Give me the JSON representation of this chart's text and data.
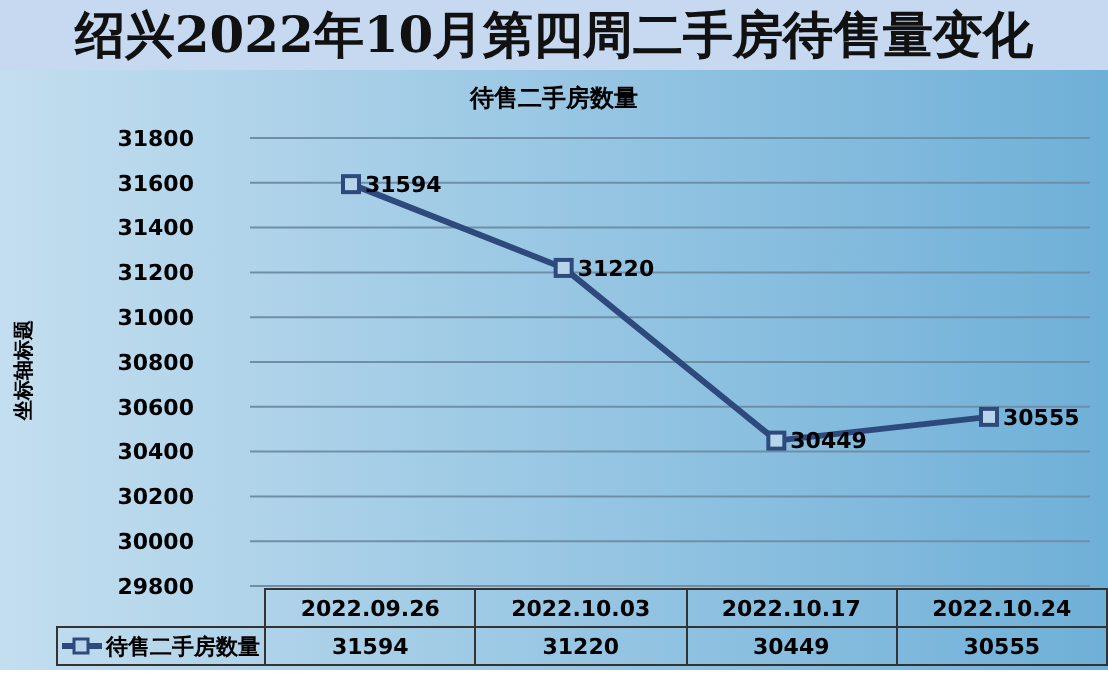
{
  "chart_data": {
    "type": "line",
    "title": "绍兴2022年10月第四周二手房待售量变化",
    "subtitle": "待售二手房数量",
    "ylabel": "坐标轴标题",
    "categories": [
      "2022.09.26",
      "2022.10.03",
      "2022.10.17",
      "2022.10.24"
    ],
    "series": [
      {
        "name": "待售二手房数量",
        "color": "#2e4a7d",
        "values": [
          31594,
          31220,
          30449,
          30555
        ],
        "value_labels": [
          "31594",
          "31220",
          "30449",
          "30555"
        ]
      }
    ],
    "ylim": [
      29800,
      31800
    ],
    "yticks": [
      29800,
      30000,
      30200,
      30400,
      30600,
      30800,
      31000,
      31200,
      31400,
      31600,
      31800
    ],
    "grid": "y",
    "legend": "bottom",
    "marker": "square",
    "line_style": "solid"
  }
}
